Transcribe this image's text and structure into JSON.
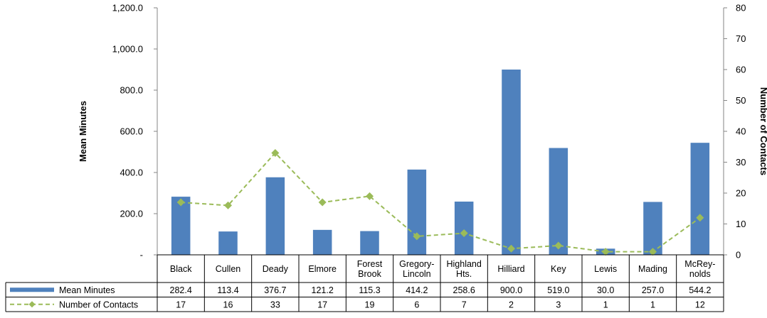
{
  "chart_data": {
    "type": "bar",
    "categories": [
      [
        "Black"
      ],
      [
        "Cullen"
      ],
      [
        "Deady"
      ],
      [
        "Elmore"
      ],
      [
        "Forest",
        "Brook"
      ],
      [
        "Gregory-",
        "Lincoln"
      ],
      [
        "Highland",
        "Hts."
      ],
      [
        "Hilliard"
      ],
      [
        "Key"
      ],
      [
        "Lewis"
      ],
      [
        "Mading"
      ],
      [
        "McRey-",
        "nolds"
      ]
    ],
    "series": [
      {
        "name": "Mean Minutes",
        "type": "bar",
        "axis": "left",
        "color": "#4F81BD",
        "values": [
          282.4,
          113.4,
          376.7,
          121.2,
          115.3,
          414.2,
          258.6,
          900.0,
          519.0,
          30.0,
          257.0,
          544.2
        ],
        "labels": [
          "282.4",
          "113.4",
          "376.7",
          "121.2",
          "115.3",
          "414.2",
          "258.6",
          "900.0",
          "519.0",
          "30.0",
          "257.0",
          "544.2"
        ]
      },
      {
        "name": "Number of Contacts",
        "type": "line",
        "axis": "right",
        "style": "dashed",
        "marker": "diamond",
        "color": "#9BBB59",
        "values": [
          17,
          16,
          33,
          17,
          19,
          6,
          7,
          2,
          3,
          1,
          1,
          12
        ],
        "labels": [
          "17",
          "16",
          "33",
          "17",
          "19",
          "6",
          "7",
          "2",
          "3",
          "1",
          "1",
          "12"
        ]
      }
    ],
    "ylabel": "Mean Minutes",
    "y2label": "Number of Contacts",
    "ylim": [
      0,
      1200
    ],
    "y2lim": [
      0,
      80
    ],
    "yticks": [
      0,
      200,
      400,
      600,
      800,
      1000,
      1200
    ],
    "yticklabels": [
      "-",
      "200.0",
      "400.0",
      "600.0",
      "800.0",
      "1,000.0",
      "1,200.0"
    ],
    "y2ticks": [
      0,
      10,
      20,
      30,
      40,
      50,
      60,
      70,
      80
    ],
    "y2ticklabels": [
      "0",
      "10",
      "20",
      "30",
      "40",
      "50",
      "60",
      "70",
      "80"
    ],
    "grid": false,
    "legend": "data table"
  }
}
